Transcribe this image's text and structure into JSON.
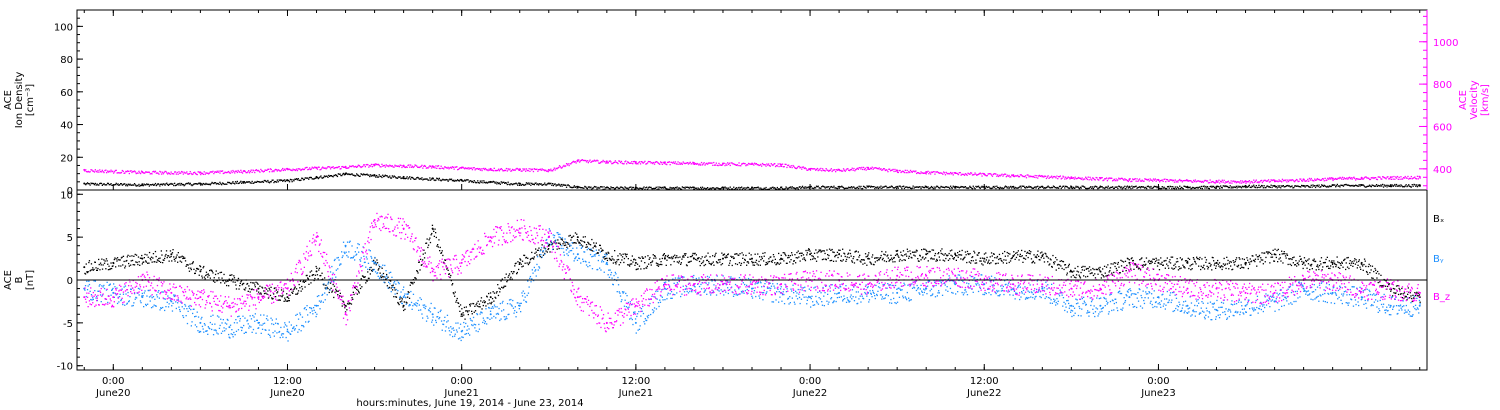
{
  "chart_data": [
    {
      "type": "scatter",
      "panel": "top",
      "ylabel": [
        "ACE",
        "Ion Density",
        "[cm⁻³]"
      ],
      "ylim": [
        0,
        110
      ],
      "yticks": [
        0,
        20,
        40,
        60,
        80,
        100
      ],
      "y2label": [
        "ACE",
        "Velocity",
        "[km/s]"
      ],
      "y2lim": [
        300,
        1150
      ],
      "y2ticks": [
        400,
        600,
        800,
        1000
      ],
      "x": [
        -2,
        2,
        6,
        9,
        12,
        14,
        16,
        18,
        20,
        22,
        24,
        26,
        28,
        30,
        32,
        34,
        36,
        38,
        40,
        42,
        44,
        46,
        48,
        50,
        52,
        54,
        56,
        58,
        60,
        62,
        64,
        66,
        68,
        70,
        72,
        74,
        76,
        78,
        80,
        82,
        84,
        86,
        88,
        90
      ],
      "series": [
        {
          "name": "",
          "axis": "left",
          "color": "#000000",
          "values": [
            4,
            3.5,
            4,
            5,
            6,
            8,
            10,
            9,
            8,
            7,
            6,
            5,
            4,
            4,
            2,
            1.5,
            1.5,
            1.5,
            1.5,
            1.5,
            1.5,
            1.5,
            2,
            2,
            2,
            2,
            2,
            2,
            2,
            2,
            2,
            2,
            2,
            2,
            2,
            2,
            2,
            2.5,
            2.5,
            2.5,
            3,
            3,
            3,
            3
          ]
        },
        {
          "name": "",
          "axis": "right",
          "color": "#ff00ff",
          "values": [
            395,
            385,
            383,
            390,
            400,
            405,
            410,
            420,
            415,
            412,
            405,
            400,
            398,
            395,
            440,
            435,
            432,
            430,
            428,
            425,
            423,
            420,
            400,
            395,
            405,
            392,
            385,
            380,
            375,
            370,
            365,
            360,
            355,
            350,
            348,
            345,
            343,
            342,
            345,
            350,
            355,
            358,
            360,
            362
          ]
        }
      ]
    },
    {
      "type": "scatter",
      "panel": "bottom",
      "ylabel": [
        "ACE",
        "B",
        "[nT]"
      ],
      "ylim": [
        -10.5,
        10.5
      ],
      "yticks": [
        -10,
        -5,
        0,
        5,
        10
      ],
      "legend": [
        "Bₓ",
        "Bᵧ",
        "B_z"
      ],
      "legend_position": "right",
      "x": [
        -2,
        0,
        2,
        4,
        6,
        8,
        10,
        12,
        14,
        16,
        18,
        20,
        22,
        24,
        26,
        28,
        30,
        32,
        34,
        36,
        38,
        40,
        42,
        44,
        46,
        48,
        50,
        52,
        54,
        56,
        58,
        60,
        62,
        64,
        66,
        68,
        70,
        72,
        74,
        76,
        78,
        80,
        82,
        84,
        86,
        88,
        90
      ],
      "series": [
        {
          "name": "Bₓ",
          "color": "#000000",
          "values": [
            1.5,
            2,
            2.5,
            3,
            1,
            0,
            -1,
            -2,
            1,
            -3,
            2,
            -3,
            6,
            -4,
            -2,
            2,
            4,
            5,
            3,
            2,
            2.5,
            2.5,
            2.5,
            2.5,
            2.5,
            3,
            3,
            2.5,
            3,
            3,
            3,
            2.5,
            2.8,
            2.8,
            1,
            1,
            2,
            2,
            2,
            2,
            2,
            3,
            2,
            2,
            2,
            -1,
            -2
          ]
        },
        {
          "name": "Bᵧ",
          "color": "#1e90ff",
          "values": [
            -1,
            -1.5,
            -2,
            -2.5,
            -5,
            -5.5,
            -5,
            -6,
            -3,
            4,
            2,
            -2,
            -4,
            -6,
            -4,
            -3,
            5,
            3,
            2,
            -5,
            -1,
            -0.5,
            -0.5,
            -1,
            -1.5,
            -2,
            -1.5,
            -1.5,
            -1.5,
            -1,
            -0.5,
            -0.5,
            -1,
            -1,
            -3,
            -3,
            -2,
            -2,
            -3,
            -3.5,
            -3,
            -2.5,
            -1,
            -1.5,
            -2,
            -3,
            -3
          ]
        },
        {
          "name": "B_z",
          "color": "#ff00ff",
          "values": [
            -2,
            -2,
            0,
            -1.5,
            -2,
            -3,
            -2,
            -1,
            5,
            -4,
            7,
            6,
            1,
            2,
            5,
            6,
            5,
            -2,
            -5,
            -3,
            -0.5,
            -0.5,
            -0.5,
            -0.5,
            -0.5,
            0,
            0,
            -0.5,
            0.5,
            0.5,
            0.5,
            0,
            -0.5,
            -0.5,
            -1,
            -1,
            1,
            0,
            -1,
            -1,
            -1.5,
            -1.5,
            0,
            0,
            -1,
            -1,
            -1.5
          ]
        }
      ]
    }
  ],
  "xaxis": {
    "xlim": [
      -2.5,
      90.5
    ],
    "ticks": [
      {
        "t": 0,
        "time": "0:00",
        "date": "June20"
      },
      {
        "t": 12,
        "time": "12:00",
        "date": "June20"
      },
      {
        "t": 24,
        "time": "0:00",
        "date": "June21"
      },
      {
        "t": 36,
        "time": "12:00",
        "date": "June21"
      },
      {
        "t": 48,
        "time": "0:00",
        "date": "June22"
      },
      {
        "t": 60,
        "time": "12:00",
        "date": "June22"
      },
      {
        "t": 72,
        "time": "0:00",
        "date": "June23"
      }
    ],
    "xlabel": "hours:minutes, June 19, 2014 - June 23, 2014"
  }
}
